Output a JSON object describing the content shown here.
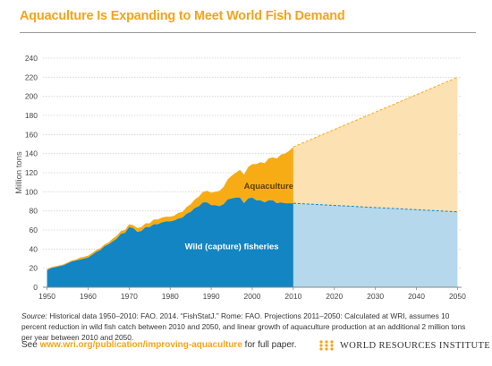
{
  "title": "Aquaculture Is Expanding to Meet World Fish Demand",
  "colors": {
    "title": "#f6a31a",
    "wild_historical": "#1385c2",
    "aquaculture_historical": "#f7ac15",
    "wild_projected": "#b5d8ec",
    "aquaculture_projected": "#fce1b2",
    "url": "#f6a31a"
  },
  "chart_data": {
    "type": "area",
    "title": "Aquaculture Is Expanding to Meet World Fish Demand",
    "ylabel": "Million tons",
    "xlabel": "",
    "xlim": [
      1949,
      2051
    ],
    "ylim": [
      0,
      240
    ],
    "x_ticks": [
      1950,
      1960,
      1970,
      1980,
      1990,
      2000,
      2010,
      2020,
      2030,
      2040,
      2050
    ],
    "y_ticks": [
      0,
      20,
      40,
      60,
      80,
      100,
      120,
      140,
      160,
      180,
      200,
      220,
      240
    ],
    "grid": "horizontal",
    "stacked": true,
    "annotations": [
      "Aquaculture",
      "Wild (capture) fisheries"
    ],
    "series": [
      {
        "name": "Wild (capture) fisheries",
        "x": [
          1950,
          1951,
          1952,
          1953,
          1954,
          1955,
          1956,
          1957,
          1958,
          1959,
          1960,
          1961,
          1962,
          1963,
          1964,
          1965,
          1966,
          1967,
          1968,
          1969,
          1970,
          1971,
          1972,
          1973,
          1974,
          1975,
          1976,
          1977,
          1978,
          1979,
          1980,
          1981,
          1982,
          1983,
          1984,
          1985,
          1986,
          1987,
          1988,
          1989,
          1990,
          1991,
          1992,
          1993,
          1994,
          1995,
          1996,
          1997,
          1998,
          1999,
          2000,
          2001,
          2002,
          2003,
          2004,
          2005,
          2006,
          2007,
          2008,
          2009,
          2010
        ],
        "values": [
          18,
          20,
          21,
          22,
          23,
          25,
          27,
          28,
          29,
          30,
          31,
          34,
          37,
          39,
          43,
          45,
          48,
          51,
          56,
          57,
          63,
          62,
          58,
          59,
          63,
          63,
          66,
          66,
          68,
          69,
          69,
          70,
          72,
          73,
          77,
          79,
          83,
          85,
          89,
          89,
          86,
          86,
          85,
          87,
          92,
          93,
          94,
          94,
          88,
          93,
          94,
          91,
          91,
          89,
          91,
          91,
          88,
          89,
          88,
          88,
          88
        ]
      },
      {
        "name": "Aquaculture",
        "x": [
          1950,
          1951,
          1952,
          1953,
          1954,
          1955,
          1956,
          1957,
          1958,
          1959,
          1960,
          1961,
          1962,
          1963,
          1964,
          1965,
          1966,
          1967,
          1968,
          1969,
          1970,
          1971,
          1972,
          1973,
          1974,
          1975,
          1976,
          1977,
          1978,
          1979,
          1980,
          1981,
          1982,
          1983,
          1984,
          1985,
          1986,
          1987,
          1988,
          1989,
          1990,
          1991,
          1992,
          1993,
          1994,
          1995,
          1996,
          1997,
          1998,
          1999,
          2000,
          2001,
          2002,
          2003,
          2004,
          2005,
          2006,
          2007,
          2008,
          2009,
          2010
        ],
        "values": [
          1,
          1,
          1,
          1,
          1,
          1,
          1,
          1,
          2,
          2,
          2,
          2,
          2,
          2,
          2,
          2,
          3,
          3,
          3,
          3,
          3,
          3,
          4,
          4,
          4,
          4,
          5,
          5,
          5,
          5,
          5,
          5,
          6,
          6,
          7,
          8,
          9,
          10,
          11,
          12,
          13,
          14,
          16,
          18,
          21,
          24,
          26,
          29,
          30,
          33,
          35,
          38,
          40,
          41,
          44,
          45,
          47,
          50,
          52,
          55,
          59
        ]
      },
      {
        "name": "Wild (capture) fisheries projected",
        "x": [
          2010,
          2050
        ],
        "values": [
          88,
          79
        ]
      },
      {
        "name": "Aquaculture projected",
        "x": [
          2010,
          2050
        ],
        "values": [
          59,
          141
        ],
        "totals": [
          147,
          220
        ]
      }
    ]
  },
  "source": {
    "lead": "Source:",
    "text": " Historical data 1950–2010: FAO. 2014. “FishStatJ.” Rome: FAO. Projections 2011–2050: Calculated at WRI, assumes 10 percent reduction in wild fish catch between 2010 and 2050, and linear growth of aquaculture production at an additional 2 million tons per year between 2010 and 2050."
  },
  "footer": {
    "prefix": "See ",
    "url": "www.wri.org/publication/improving-aquaculture",
    "suffix": " for full paper.",
    "org": "WORLD RESOURCES INSTITUTE"
  }
}
